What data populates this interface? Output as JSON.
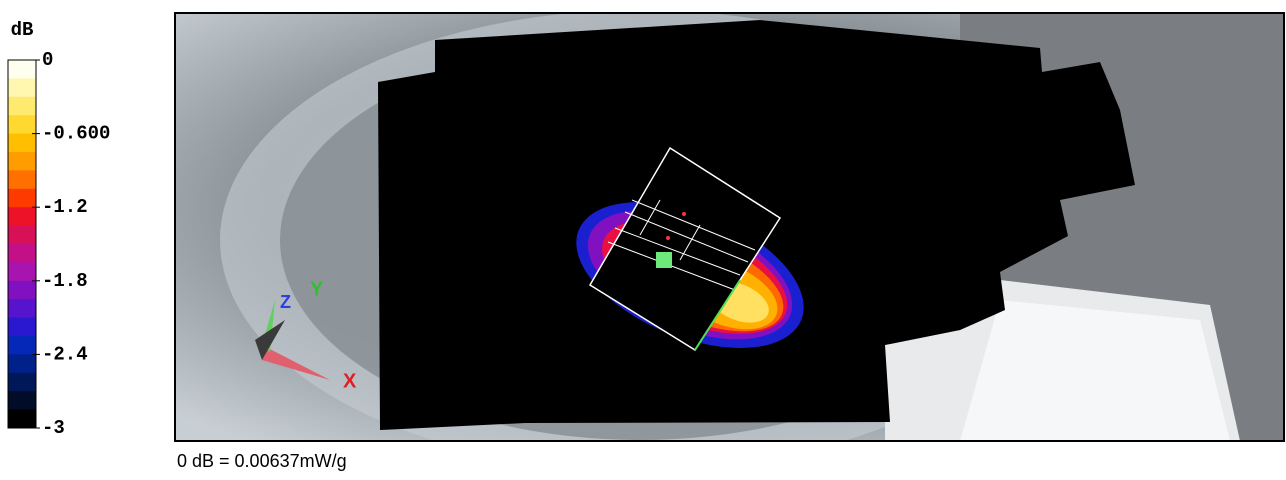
{
  "colorbar": {
    "unit": "dB",
    "ticks": [
      0,
      {
        "value": -0.6,
        "label": "-0.600"
      },
      -1.2,
      -1.8,
      -2.4,
      -3
    ],
    "colors": [
      "#fffff0",
      "#fff6b0",
      "#ffea70",
      "#ffd830",
      "#ffbe00",
      "#ff9c00",
      "#ff7000",
      "#ff3a00",
      "#ee1228",
      "#d81058",
      "#c41088",
      "#a814b0",
      "#8010c0",
      "#5614cc",
      "#2a18d0",
      "#0628b8",
      "#00208a",
      "#001858",
      "#000c28",
      "#000000"
    ]
  },
  "footer": "0 dB = 0.00637mW/g"
}
